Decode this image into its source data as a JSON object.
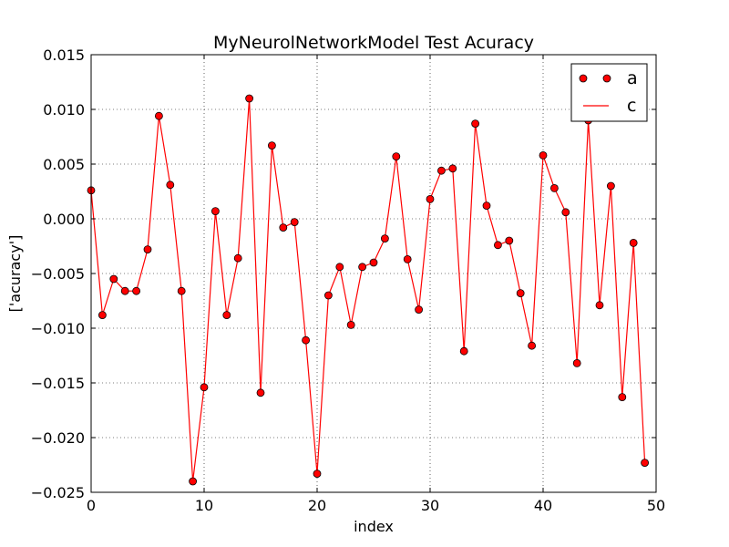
{
  "chart_data": {
    "type": "line",
    "title": "MyNeurolNetworkModel Test Acuracy",
    "xlabel": "index",
    "ylabel": "['acuracy']",
    "xlim": [
      0,
      50
    ],
    "ylim": [
      -0.025,
      0.015
    ],
    "xticks": [
      0,
      10,
      20,
      30,
      40,
      50
    ],
    "yticks": [
      -0.025,
      -0.02,
      -0.015,
      -0.01,
      -0.005,
      0.0,
      0.005,
      0.01,
      0.015
    ],
    "xtick_labels": [
      "0",
      "10",
      "20",
      "30",
      "40",
      "50"
    ],
    "ytick_labels": [
      "−0.025",
      "−0.020",
      "−0.015",
      "−0.010",
      "−0.005",
      "0.000",
      "0.005",
      "0.010",
      "0.015"
    ],
    "grid": true,
    "legend_position": "top-right",
    "x": [
      0,
      1,
      2,
      3,
      4,
      5,
      6,
      7,
      8,
      9,
      10,
      11,
      12,
      13,
      14,
      15,
      16,
      17,
      18,
      19,
      20,
      21,
      22,
      23,
      24,
      25,
      26,
      27,
      28,
      29,
      30,
      31,
      32,
      33,
      34,
      35,
      36,
      37,
      38,
      39,
      40,
      41,
      42,
      43,
      44,
      45,
      46,
      47,
      48,
      49
    ],
    "series": [
      {
        "name": "a",
        "style": "markers",
        "color": "#ff0000",
        "values": [
          0.0026,
          -0.0088,
          -0.0055,
          -0.0066,
          -0.0066,
          -0.0028,
          0.0094,
          0.0031,
          -0.0066,
          -0.024,
          -0.0154,
          0.0007,
          -0.0088,
          -0.0036,
          0.011,
          -0.0159,
          0.0067,
          -0.0008,
          -0.0003,
          -0.0111,
          -0.0233,
          -0.007,
          -0.0044,
          -0.0097,
          -0.0044,
          -0.004,
          -0.0018,
          0.0057,
          -0.0037,
          -0.0083,
          0.0018,
          0.0044,
          0.0046,
          -0.0121,
          0.0087,
          0.0012,
          -0.0024,
          -0.002,
          -0.0068,
          -0.0116,
          0.0058,
          0.0028,
          0.0006,
          -0.0132,
          0.009,
          -0.0079,
          0.003,
          -0.0163,
          -0.0022,
          -0.0223
        ]
      },
      {
        "name": "c",
        "style": "line",
        "color": "#ff0000",
        "values": [
          0.0026,
          -0.0088,
          -0.0055,
          -0.0066,
          -0.0066,
          -0.0028,
          0.0094,
          0.0031,
          -0.0066,
          -0.024,
          -0.0154,
          0.0007,
          -0.0088,
          -0.0036,
          0.011,
          -0.0159,
          0.0067,
          -0.0008,
          -0.0003,
          -0.0111,
          -0.0233,
          -0.007,
          -0.0044,
          -0.0097,
          -0.0044,
          -0.004,
          -0.0018,
          0.0057,
          -0.0037,
          -0.0083,
          0.0018,
          0.0044,
          0.0046,
          -0.0121,
          0.0087,
          0.0012,
          -0.0024,
          -0.002,
          -0.0068,
          -0.0116,
          0.0058,
          0.0028,
          0.0006,
          -0.0132,
          0.009,
          -0.0079,
          0.003,
          -0.0163,
          -0.0022,
          -0.0223
        ]
      }
    ]
  }
}
